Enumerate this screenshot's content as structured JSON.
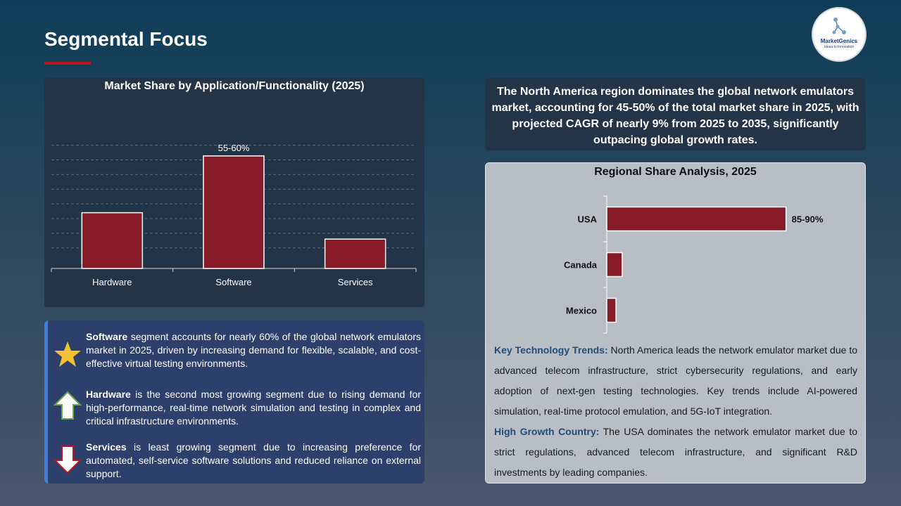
{
  "page": {
    "title": "Segmental Focus",
    "logo_name": "MarketGenics",
    "logo_tagline": "Ideas to Innovation"
  },
  "colors": {
    "bar": "#861a26",
    "accent_line": "#c0141c",
    "trend_label": "#1f4e79"
  },
  "chart_data": [
    {
      "type": "bar",
      "title": "Market Share by Application/Functionality (2025)",
      "categories": [
        "Hardware",
        "Software",
        "Services"
      ],
      "values": [
        28.5,
        57.5,
        15
      ],
      "data_labels": [
        "",
        "55-60%",
        ""
      ],
      "ylim": [
        0,
        65
      ],
      "grid": true,
      "orientation": "vertical"
    },
    {
      "type": "bar",
      "title": "Regional Share Analysis, 2025",
      "categories": [
        "USA",
        "Canada",
        "Mexico"
      ],
      "values": [
        87.5,
        7.5,
        4.5
      ],
      "data_labels": [
        "85-90%",
        "",
        ""
      ],
      "xlim": [
        0,
        100
      ],
      "grid": false,
      "orientation": "horizontal"
    }
  ],
  "summary": "The North America region dominates the global network emulators market, accounting for 45-50% of the total market share in 2025, with projected CAGR of nearly 9% from 2025 to 2035, significantly outpacing global growth rates.",
  "insights": [
    {
      "icon": "star-icon",
      "lead": "Software",
      "text": " segment accounts for nearly 60% of the global network emulators market in 2025, driven by increasing demand for flexible, scalable, and cost-effective virtual testing environments."
    },
    {
      "icon": "arrow-up-icon",
      "lead": "Hardware",
      "text": " is the second most growing segment due to rising demand for high-performance, real-time network simulation and testing in complex and critical infrastructure environments."
    },
    {
      "icon": "arrow-down-icon",
      "lead": "Services",
      "text": " is least growing segment due to increasing preference for automated, self-service software solutions and reduced reliance on external support."
    }
  ],
  "trends": {
    "tech_label": "Key Technology Trends:",
    "tech_text": " North America leads the network emulator market due to advanced telecom infrastructure, strict cybersecurity regulations, and early adoption of next-gen testing technologies. Key trends include AI-powered simulation, real-time protocol emulation, and 5G-IoT integration.",
    "growth_label": "High Growth Country:",
    "growth_text": " The USA dominates the network emulator market due to strict regulations, advanced telecom infrastructure, and significant R&D investments by leading companies."
  }
}
